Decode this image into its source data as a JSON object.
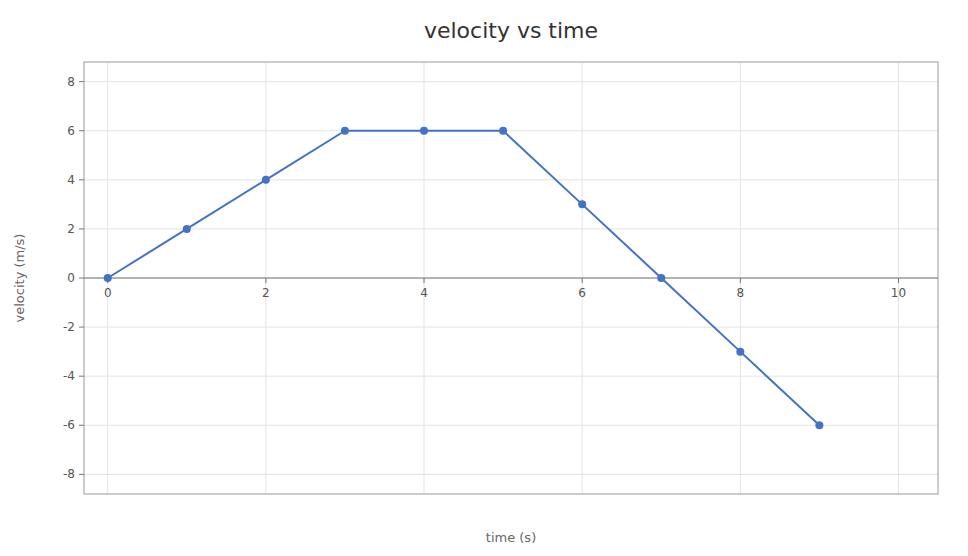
{
  "chart_data": {
    "type": "line",
    "title": "velocity vs time",
    "xlabel": "time (s)",
    "ylabel": "velocity (m/s)",
    "x": [
      0,
      1,
      2,
      3,
      4,
      5,
      6,
      7,
      8,
      9
    ],
    "values": [
      0,
      2,
      4,
      6,
      6,
      6,
      3,
      0,
      -3,
      -6
    ],
    "color": "#4472C4",
    "marker": "circle",
    "xlim": [
      -0.3,
      10.5
    ],
    "ylim": [
      -8.8,
      8.8
    ],
    "xticks": [
      0,
      2,
      4,
      6,
      8,
      10
    ],
    "yticks": [
      -8,
      -6,
      -4,
      -2,
      0,
      2,
      4,
      6,
      8
    ],
    "grid": true
  }
}
